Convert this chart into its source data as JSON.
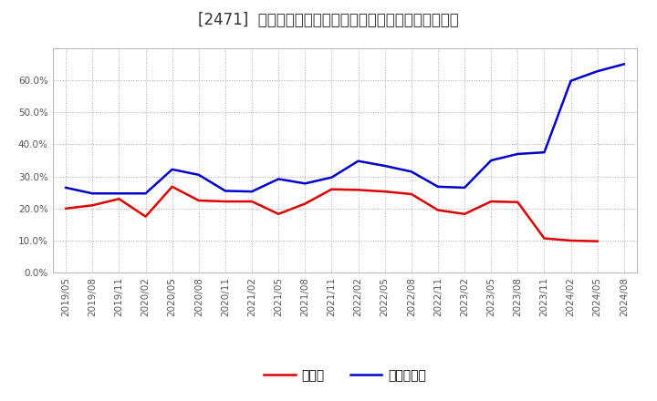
{
  "title": "[2471]  現預金、有利子負債の総資産に対する比率の推移",
  "x_labels": [
    "2019/05",
    "2019/08",
    "2019/11",
    "2020/02",
    "2020/05",
    "2020/08",
    "2020/11",
    "2021/02",
    "2021/05",
    "2021/08",
    "2021/11",
    "2022/02",
    "2022/05",
    "2022/08",
    "2022/11",
    "2023/02",
    "2023/05",
    "2023/08",
    "2023/11",
    "2024/02",
    "2024/05",
    "2024/08"
  ],
  "cash_ratio": [
    0.2,
    0.21,
    0.23,
    0.175,
    0.268,
    0.225,
    0.222,
    0.222,
    0.183,
    0.215,
    0.26,
    0.258,
    0.253,
    0.245,
    0.195,
    0.183,
    0.222,
    0.22,
    0.107,
    0.1,
    0.098,
    null
  ],
  "debt_ratio": [
    0.265,
    0.247,
    0.247,
    0.247,
    0.322,
    0.305,
    0.255,
    0.253,
    0.292,
    0.278,
    0.297,
    0.348,
    0.333,
    0.315,
    0.268,
    0.265,
    0.35,
    0.37,
    0.375,
    0.598,
    0.628,
    0.65
  ],
  "cash_color": "#dd0000",
  "debt_color": "#0000cc",
  "bg_color": "#ffffff",
  "plot_bg_color": "#ffffff",
  "grid_color": "#aaaaaa",
  "title_color": "#333333",
  "legend_cash": "現預金",
  "legend_debt": "有利子負債",
  "ylim": [
    0.0,
    0.7
  ],
  "yticks": [
    0.0,
    0.1,
    0.2,
    0.3,
    0.4,
    0.5,
    0.6
  ],
  "title_fontsize": 12,
  "tick_fontsize": 7.5,
  "legend_fontsize": 10,
  "linewidth": 1.8
}
